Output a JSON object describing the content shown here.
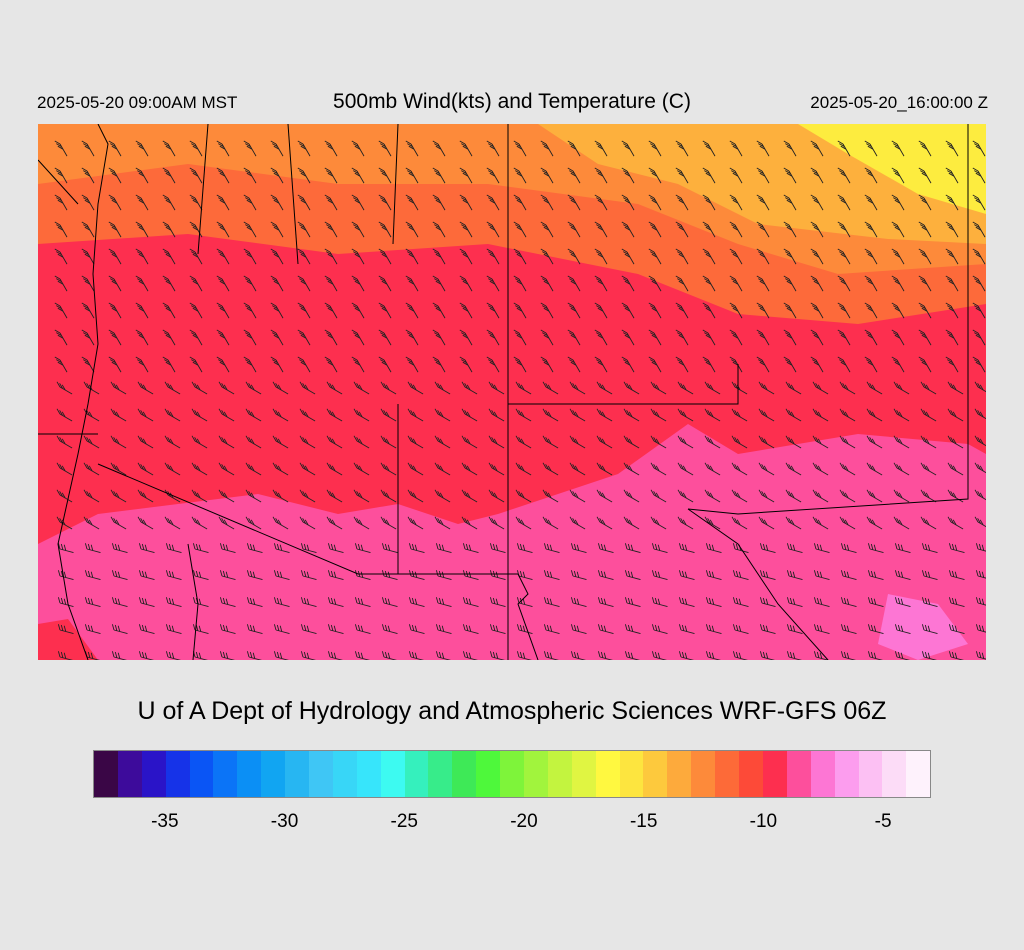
{
  "header": {
    "local_time": "2025-05-20 09:00AM MST",
    "title": "500mb Wind(kts) and Temperature (C)",
    "valid_time": "2025-05-20_16:00:00 Z"
  },
  "credit": "U of A Dept of Hydrology and Atmospheric Sciences WRF-GFS 06Z",
  "colorbar": {
    "colors": [
      "#3a0646",
      "#3d0b9b",
      "#2a14c8",
      "#1633e8",
      "#0a55f5",
      "#0b74f7",
      "#0b8ff5",
      "#11a5f2",
      "#27b6f2",
      "#3fc6f5",
      "#38d6f7",
      "#37e5fb",
      "#3dfaf1",
      "#35f0bd",
      "#37ec8a",
      "#3ee957",
      "#4ef83b",
      "#7ef43a",
      "#a1f43d",
      "#c3f43f",
      "#e0f542",
      "#fff840",
      "#fde53f",
      "#fdc93d",
      "#fdaa3c",
      "#fd8a3a",
      "#fd6a38",
      "#fd4a38",
      "#fd2f4f",
      "#fd4f9c",
      "#fd76d4",
      "#fc9dee",
      "#fcc0f3",
      "#fcdcf7",
      "#fef2fc"
    ],
    "tick_labels": [
      {
        "label": "-35",
        "value": -35
      },
      {
        "label": "-30",
        "value": -30
      },
      {
        "label": "-25",
        "value": -25
      },
      {
        "label": "-20",
        "value": -20
      },
      {
        "label": "-15",
        "value": -15
      },
      {
        "label": "-10",
        "value": -10
      },
      {
        "label": "-5",
        "value": -5
      }
    ]
  },
  "map": {
    "field_colors": {
      "very_cold": "#fdec3f",
      "cold": "#fdb03d",
      "cool": "#fd8a3a",
      "mid": "#fd6a3a",
      "warm": "#fd3848",
      "hot": "#fd2f4f",
      "hotter": "#fd4f9c",
      "hottest": "#fd76d4"
    },
    "border_color": "#000000",
    "contour_color": "#888888"
  }
}
